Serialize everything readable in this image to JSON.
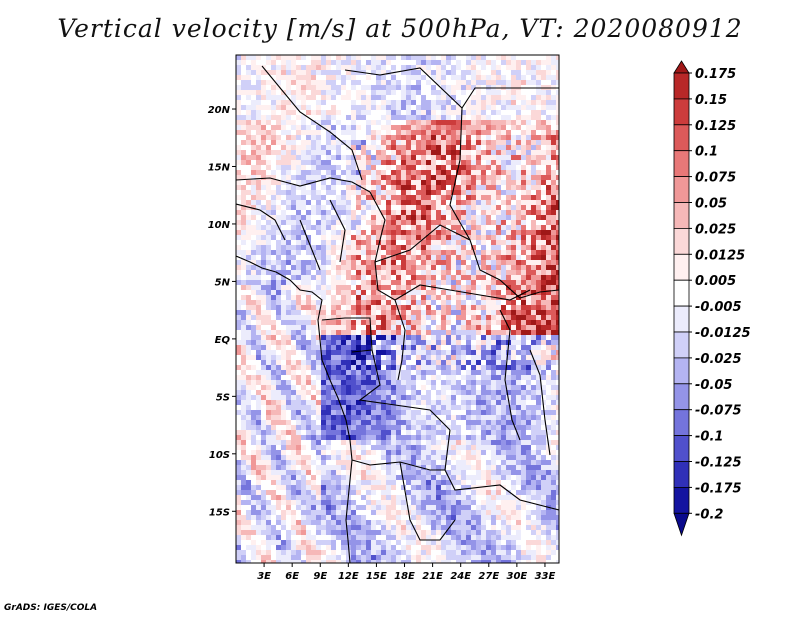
{
  "title": "Vertical velocity [m/s] at 500hPa, VT: 2020080912",
  "credit": "GrADS: IGES/COLA",
  "map": {
    "lat_labels": [
      "20N",
      "15N",
      "10N",
      "5N",
      "EQ",
      "5S",
      "10S",
      "15S"
    ],
    "lon_labels": [
      "3E",
      "6E",
      "9E",
      "12E",
      "15E",
      "18E",
      "21E",
      "24E",
      "27E",
      "30E",
      "33E"
    ]
  },
  "colorbar": {
    "labels": [
      "0.175",
      "0.15",
      "0.125",
      "0.1",
      "0.075",
      "0.05",
      "0.025",
      "0.0125",
      "0.005",
      "-0.005",
      "-0.0125",
      "-0.025",
      "-0.05",
      "-0.075",
      "-0.1",
      "-0.125",
      "-0.175",
      "-0.2"
    ],
    "colors": [
      "#a01818",
      "#b82828",
      "#cc3c3c",
      "#dc5a5a",
      "#e87878",
      "#f09898",
      "#f6b8b8",
      "#fbd8d8",
      "#fff0f0",
      "#ffffff",
      "#ececfc",
      "#d0d0f8",
      "#b4b4f2",
      "#9494e8",
      "#7474dc",
      "#5050cc",
      "#3030b8",
      "#1414a0",
      "#0a0a8c"
    ]
  }
}
